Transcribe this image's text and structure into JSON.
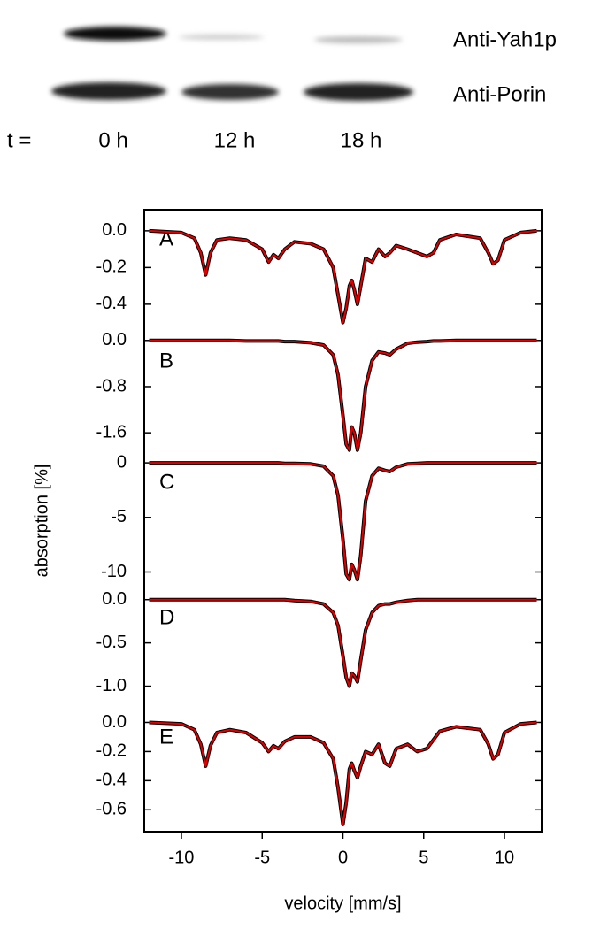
{
  "blot": {
    "bands": [
      "Anti-Yah1p",
      "Anti-Porin"
    ],
    "time_prefix": "t =",
    "lanes": [
      "0 h",
      "12 h",
      "18 h"
    ]
  },
  "chart_data": [
    {
      "type": "line",
      "label": "A",
      "xlim": [
        -12.3,
        12.3
      ],
      "ylim": [
        -0.55,
        0.115
      ],
      "yticks": [
        {
          "value": 0,
          "label": "0.0"
        },
        -0.2,
        -0.4
      ],
      "x": [
        -12,
        -10,
        -9.2,
        -8.8,
        -8.5,
        -8.2,
        -7.8,
        -7,
        -6,
        -5,
        -4.6,
        -4.3,
        -4,
        -3.6,
        -3,
        -2,
        -1.2,
        -0.6,
        -0.3,
        0,
        0.2,
        0.4,
        0.55,
        0.7,
        0.9,
        1.1,
        1.4,
        1.8,
        2.2,
        2.6,
        2.9,
        3.3,
        4,
        4.6,
        5.2,
        5.6,
        6,
        7,
        8.5,
        9,
        9.3,
        9.6,
        10,
        11,
        12
      ],
      "series": [
        {
          "color": "#e00000",
          "values": [
            0,
            -0.01,
            -0.04,
            -0.12,
            -0.24,
            -0.12,
            -0.05,
            -0.04,
            -0.05,
            -0.1,
            -0.17,
            -0.13,
            -0.15,
            -0.1,
            -0.06,
            -0.07,
            -0.1,
            -0.2,
            -0.35,
            -0.5,
            -0.42,
            -0.3,
            -0.27,
            -0.32,
            -0.4,
            -0.3,
            -0.15,
            -0.17,
            -0.1,
            -0.14,
            -0.12,
            -0.08,
            -0.1,
            -0.12,
            -0.14,
            -0.12,
            -0.05,
            -0.02,
            -0.04,
            -0.12,
            -0.18,
            -0.16,
            -0.05,
            -0.01,
            0
          ]
        }
      ]
    },
    {
      "type": "line",
      "label": "B",
      "xlim": [
        -12.3,
        12.3
      ],
      "ylim": [
        -1.95,
        0.15
      ],
      "yticks": [
        {
          "value": 0,
          "label": "0.0"
        },
        -0.8,
        -1.6
      ],
      "x": [
        -12,
        -10,
        -9.2,
        -8.8,
        -8.5,
        -8.2,
        -7.8,
        -7,
        -6,
        -5,
        -4.6,
        -4.3,
        -4,
        -3.6,
        -3,
        -2,
        -1.2,
        -0.6,
        -0.3,
        0,
        0.2,
        0.4,
        0.55,
        0.7,
        0.9,
        1.1,
        1.4,
        1.8,
        2.2,
        2.6,
        2.9,
        3.3,
        4,
        4.6,
        5.2,
        5.6,
        6,
        7,
        8.5,
        9,
        9.3,
        9.6,
        10,
        11,
        12
      ],
      "series": [
        {
          "color": "#e00000",
          "values": [
            0,
            0,
            0,
            0,
            0,
            0,
            0,
            0,
            -0.01,
            -0.01,
            -0.01,
            -0.01,
            -0.01,
            -0.02,
            -0.02,
            -0.04,
            -0.08,
            -0.25,
            -0.6,
            -1.3,
            -1.8,
            -1.9,
            -1.5,
            -1.6,
            -1.9,
            -1.6,
            -0.8,
            -0.35,
            -0.2,
            -0.22,
            -0.25,
            -0.15,
            -0.05,
            -0.03,
            -0.02,
            -0.01,
            -0.01,
            0,
            0,
            0,
            0,
            0,
            0,
            0,
            0
          ]
        }
      ]
    },
    {
      "type": "line",
      "label": "C",
      "y_label": "absorption [%]",
      "xlim": [
        -12.3,
        12.3
      ],
      "ylim": [
        -11.5,
        0.9
      ],
      "yticks": [
        0,
        -5,
        -10
      ],
      "x": [
        -12,
        -10,
        -9.2,
        -8.8,
        -8.5,
        -8.2,
        -7.8,
        -7,
        -6,
        -5,
        -4.6,
        -4.3,
        -4,
        -3.6,
        -3,
        -2,
        -1.2,
        -0.6,
        -0.3,
        0,
        0.2,
        0.4,
        0.55,
        0.7,
        0.9,
        1.1,
        1.4,
        1.8,
        2.2,
        2.6,
        2.9,
        3.3,
        4,
        4.6,
        5.2,
        5.6,
        6,
        7,
        8.5,
        9,
        9.3,
        9.6,
        10,
        11,
        12
      ],
      "series": [
        {
          "color": "#e00000",
          "values": [
            0,
            0,
            0,
            0,
            0,
            0,
            0,
            0,
            0,
            0,
            0,
            0,
            0,
            -0.05,
            -0.05,
            -0.1,
            -0.3,
            -1.2,
            -3,
            -7,
            -10.2,
            -10.7,
            -9.3,
            -9.8,
            -10.7,
            -8.5,
            -3.5,
            -1.2,
            -0.5,
            -0.7,
            -0.8,
            -0.4,
            -0.1,
            -0.05,
            0,
            0,
            0,
            0,
            0,
            0,
            0,
            0,
            0,
            0,
            0
          ]
        }
      ]
    },
    {
      "type": "line",
      "label": "D",
      "xlim": [
        -12.3,
        12.3
      ],
      "ylim": [
        -1.25,
        0.13
      ],
      "yticks": [
        {
          "value": 0,
          "label": "0.0"
        },
        -0.5,
        {
          "value": -1,
          "label": "-1.0"
        }
      ],
      "x": [
        -12,
        -10,
        -9.2,
        -8.8,
        -8.5,
        -8.2,
        -7.8,
        -7,
        -6,
        -5,
        -4.6,
        -4.3,
        -4,
        -3.6,
        -3,
        -2,
        -1.2,
        -0.6,
        -0.3,
        0,
        0.2,
        0.4,
        0.55,
        0.7,
        0.9,
        1.1,
        1.4,
        1.8,
        2.2,
        2.6,
        2.9,
        3.3,
        4,
        4.6,
        5.2,
        5.6,
        6,
        7,
        8.5,
        9,
        9.3,
        9.6,
        10,
        11,
        12
      ],
      "series": [
        {
          "color": "#e00000",
          "values": [
            0,
            0,
            0,
            0,
            0,
            0,
            0,
            0,
            0,
            0,
            0,
            0,
            0,
            0,
            -0.01,
            -0.02,
            -0.05,
            -0.15,
            -0.3,
            -0.65,
            -0.9,
            -1.0,
            -0.85,
            -0.88,
            -0.95,
            -0.7,
            -0.35,
            -0.15,
            -0.07,
            -0.05,
            -0.05,
            -0.03,
            -0.01,
            0,
            0,
            0,
            0,
            0,
            0,
            0,
            0,
            0,
            0,
            0,
            0
          ]
        }
      ]
    },
    {
      "type": "line",
      "label": "E",
      "x_label": "velocity [mm/s]",
      "xlim": [
        -12.3,
        12.3
      ],
      "xticks": [
        -10,
        -5,
        0,
        5,
        10
      ],
      "ylim": [
        -0.75,
        0.1
      ],
      "yticks": [
        {
          "value": 0,
          "label": "0.0"
        },
        -0.2,
        -0.4,
        -0.6
      ],
      "x": [
        -12,
        -10,
        -9.2,
        -8.8,
        -8.5,
        -8.2,
        -7.8,
        -7,
        -6,
        -5,
        -4.6,
        -4.3,
        -4,
        -3.6,
        -3,
        -2,
        -1.2,
        -0.6,
        -0.3,
        0,
        0.2,
        0.4,
        0.55,
        0.7,
        0.9,
        1.1,
        1.4,
        1.8,
        2.2,
        2.6,
        2.9,
        3.3,
        4,
        4.6,
        5.2,
        5.6,
        6,
        7,
        8.5,
        9,
        9.3,
        9.6,
        10,
        11,
        12
      ],
      "series": [
        {
          "color": "#e00000",
          "values": [
            0,
            -0.01,
            -0.05,
            -0.15,
            -0.3,
            -0.16,
            -0.07,
            -0.05,
            -0.07,
            -0.14,
            -0.2,
            -0.16,
            -0.18,
            -0.13,
            -0.1,
            -0.1,
            -0.14,
            -0.25,
            -0.45,
            -0.7,
            -0.55,
            -0.32,
            -0.28,
            -0.33,
            -0.38,
            -0.3,
            -0.2,
            -0.22,
            -0.15,
            -0.28,
            -0.3,
            -0.18,
            -0.15,
            -0.2,
            -0.18,
            -0.12,
            -0.06,
            -0.03,
            -0.05,
            -0.15,
            -0.25,
            -0.22,
            -0.07,
            -0.01,
            0
          ]
        }
      ]
    }
  ]
}
